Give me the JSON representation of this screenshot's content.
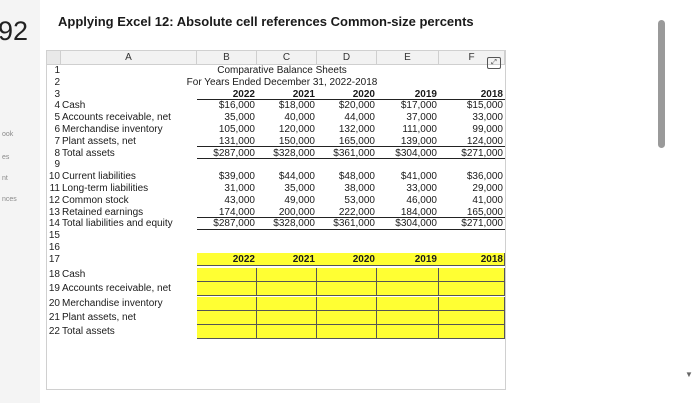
{
  "question_number": "92",
  "title": "Applying Excel 12: Absolute cell references Common-size percents",
  "side_labels": [
    "ook",
    "es",
    "nt",
    "nces"
  ],
  "columns": [
    "A",
    "B",
    "C",
    "D",
    "E",
    "F"
  ],
  "header": {
    "line1": "Comparative Balance Sheets",
    "line2": "For Years Ended December 31, 2022-2018"
  },
  "years": [
    "2022",
    "2021",
    "2020",
    "2019",
    "2018"
  ],
  "rows": [
    {
      "n": "4",
      "label": "Cash",
      "v": [
        "$16,000",
        "$18,000",
        "$20,000",
        "$17,000",
        "$15,000"
      ]
    },
    {
      "n": "5",
      "label": "Accounts receivable, net",
      "v": [
        "35,000",
        "40,000",
        "44,000",
        "37,000",
        "33,000"
      ]
    },
    {
      "n": "6",
      "label": "Merchandise inventory",
      "v": [
        "105,000",
        "120,000",
        "132,000",
        "111,000",
        "99,000"
      ]
    },
    {
      "n": "7",
      "label": "Plant assets, net",
      "v": [
        "131,000",
        "150,000",
        "165,000",
        "139,000",
        "124,000"
      ]
    },
    {
      "n": "8",
      "label": "Total assets",
      "v": [
        "$287,000",
        "$328,000",
        "$361,000",
        "$304,000",
        "$271,000"
      ]
    },
    {
      "n": "9",
      "label": "",
      "v": [
        "",
        "",
        "",
        "",
        ""
      ]
    },
    {
      "n": "10",
      "label": "Current liabilities",
      "v": [
        "$39,000",
        "$44,000",
        "$48,000",
        "$41,000",
        "$36,000"
      ]
    },
    {
      "n": "11",
      "label": "Long-term liabilities",
      "v": [
        "31,000",
        "35,000",
        "38,000",
        "33,000",
        "29,000"
      ]
    },
    {
      "n": "12",
      "label": "Common stock",
      "v": [
        "43,000",
        "49,000",
        "53,000",
        "46,000",
        "41,000"
      ]
    },
    {
      "n": "13",
      "label": "Retained earnings",
      "v": [
        "174,000",
        "200,000",
        "222,000",
        "184,000",
        "165,000"
      ]
    },
    {
      "n": "14",
      "label": "Total liabilities and equity",
      "v": [
        "$287,000",
        "$328,000",
        "$361,000",
        "$304,000",
        "$271,000"
      ]
    }
  ],
  "empty_rows": [
    "15",
    "16"
  ],
  "row17_years": [
    "2022",
    "2021",
    "2020",
    "2019",
    "2018"
  ],
  "input_rows": [
    {
      "n": "18",
      "label": "Cash"
    },
    {
      "n": "19",
      "label": "Accounts receivable, net"
    },
    {
      "n": "20",
      "label": "Merchandise inventory"
    },
    {
      "n": "21",
      "label": "Plant assets, net"
    },
    {
      "n": "22",
      "label": "Total assets"
    }
  ],
  "colors": {
    "input_fill": "#ffff33"
  }
}
